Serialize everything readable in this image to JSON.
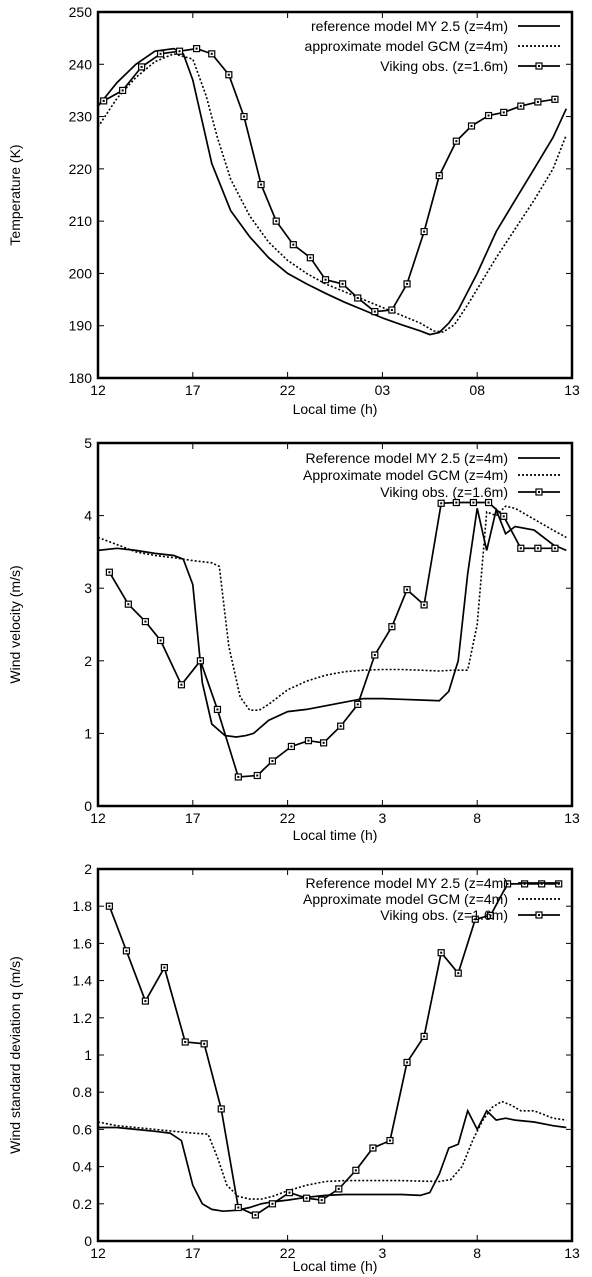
{
  "chart_data": [
    {
      "type": "line",
      "xlabel": "Local time (h)",
      "ylabel": "Temperature (K)",
      "xlim": [
        0,
        25
      ],
      "ylim": [
        180,
        250
      ],
      "xticks": [
        {
          "x": 0,
          "label": "12"
        },
        {
          "x": 5,
          "label": "17"
        },
        {
          "x": 10,
          "label": "22"
        },
        {
          "x": 15,
          "label": "03"
        },
        {
          "x": 20,
          "label": "08"
        },
        {
          "x": 25,
          "label": "13"
        }
      ],
      "yticks": [
        180,
        190,
        200,
        210,
        220,
        230,
        240,
        250
      ],
      "grid": false,
      "legend_position": "top-right",
      "series": [
        {
          "name": "reference model MY 2.5 (z=4m)",
          "style": "solid",
          "markers": false,
          "x": [
            0,
            1,
            2,
            3,
            4,
            4.5,
            5,
            5.5,
            6,
            7,
            8,
            9,
            10,
            11,
            12,
            13,
            14,
            15,
            16,
            17,
            17.5,
            18,
            18.5,
            19,
            20,
            21,
            22,
            23,
            24,
            24.7
          ],
          "y": [
            232,
            236.5,
            240,
            242.5,
            243,
            242,
            237,
            229,
            221,
            212,
            207,
            203,
            200,
            198,
            196.2,
            194.5,
            193,
            191.5,
            190.2,
            189,
            188.3,
            188.7,
            190.5,
            193,
            200,
            208,
            214,
            220,
            226,
            231.5
          ]
        },
        {
          "name": "approximate model GCM (z=4m)",
          "style": "dotted",
          "markers": false,
          "x": [
            0,
            1,
            2,
            3,
            4,
            5,
            5.7,
            6.3,
            7,
            8,
            9,
            10,
            11,
            12,
            13,
            14,
            15,
            16,
            17,
            17.7,
            18.2,
            18.8,
            19.5,
            20,
            21,
            22,
            23,
            24,
            24.7
          ],
          "y": [
            228,
            233.5,
            237.5,
            240.5,
            242,
            241,
            234,
            226,
            218,
            211,
            206,
            202.5,
            200,
            198,
            196.5,
            195,
            193.5,
            192,
            190.5,
            189,
            188.8,
            190.2,
            194,
            197,
            203,
            208.5,
            214,
            220,
            226.5
          ]
        },
        {
          "name": "Viking obs. (z=1.6m)",
          "style": "solid",
          "markers": true,
          "x": [
            0.3,
            1.3,
            2.3,
            3.3,
            4.3,
            5.2,
            6.0,
            6.9,
            7.7,
            8.6,
            9.4,
            10.3,
            11.2,
            12.0,
            12.9,
            13.7,
            14.6,
            15.5,
            16.3,
            17.2,
            18.0,
            18.9,
            19.7,
            20.6,
            21.4,
            22.3,
            23.2,
            24.1
          ],
          "y": [
            233,
            235,
            239.5,
            242,
            242.5,
            243,
            242,
            238,
            230,
            217,
            210,
            205.5,
            203,
            198.8,
            198,
            195.3,
            192.7,
            193,
            198,
            208,
            218.7,
            225.3,
            228.2,
            230.2,
            230.8,
            232,
            232.8,
            233.3
          ]
        }
      ],
      "legend_entries": [
        "reference model MY 2.5 (z=4m)",
        "approximate model GCM (z=4m)",
        "Viking obs. (z=1.6m)"
      ]
    },
    {
      "type": "line",
      "xlabel": "Local time (h)",
      "ylabel": "Wind velocity (m/s)",
      "xlim": [
        0,
        25
      ],
      "ylim": [
        0,
        5
      ],
      "xticks": [
        {
          "x": 0,
          "label": "12"
        },
        {
          "x": 5,
          "label": "17"
        },
        {
          "x": 10,
          "label": "22"
        },
        {
          "x": 15,
          "label": "3"
        },
        {
          "x": 20,
          "label": "8"
        },
        {
          "x": 25,
          "label": "13"
        }
      ],
      "yticks": [
        0,
        1,
        2,
        3,
        4,
        5
      ],
      "grid": false,
      "legend_position": "top-right",
      "series": [
        {
          "name": "Reference model MY 2.5 (z=4m)",
          "style": "solid",
          "markers": false,
          "x": [
            0,
            1,
            2,
            3,
            4,
            4.5,
            5,
            5.5,
            6,
            6.7,
            7.3,
            7.8,
            8.2,
            9,
            10,
            11,
            12,
            13,
            14,
            15,
            16,
            17,
            18,
            18.5,
            19,
            19.5,
            20,
            20.5,
            21,
            21.5,
            22,
            23,
            24,
            24.7
          ],
          "y": [
            3.52,
            3.55,
            3.52,
            3.48,
            3.45,
            3.4,
            3.05,
            1.7,
            1.13,
            0.97,
            0.95,
            0.97,
            1.0,
            1.18,
            1.3,
            1.33,
            1.38,
            1.43,
            1.48,
            1.48,
            1.47,
            1.46,
            1.45,
            1.58,
            2.0,
            3.2,
            4.1,
            3.52,
            4.08,
            3.75,
            3.85,
            3.8,
            3.6,
            3.52
          ]
        },
        {
          "name": "Approximate model GCM (z=4m)",
          "style": "dotted",
          "markers": false,
          "x": [
            0,
            1,
            2,
            3,
            4,
            5,
            6,
            6.4,
            6.9,
            7.5,
            8,
            8.5,
            9,
            9.5,
            10,
            11,
            12,
            13,
            14,
            15,
            16,
            17,
            18,
            18.7,
            19.5,
            20,
            20.5,
            21,
            21.5,
            22,
            23,
            24,
            24.7
          ],
          "y": [
            3.7,
            3.6,
            3.5,
            3.45,
            3.42,
            3.38,
            3.35,
            3.3,
            2.2,
            1.5,
            1.32,
            1.32,
            1.4,
            1.5,
            1.6,
            1.72,
            1.8,
            1.85,
            1.87,
            1.88,
            1.88,
            1.87,
            1.86,
            1.87,
            1.87,
            2.5,
            4.05,
            4.0,
            4.13,
            4.1,
            3.95,
            3.8,
            3.7
          ]
        },
        {
          "name": "Viking obs. (z=1.6m)",
          "style": "solid",
          "markers": true,
          "x": [
            0.6,
            1.6,
            2.5,
            3.3,
            4.4,
            5.4,
            6.3,
            7.4,
            8.4,
            9.2,
            10.2,
            11.1,
            11.9,
            12.8,
            13.7,
            14.6,
            15.5,
            16.3,
            17.2,
            18.1,
            18.9,
            19.8,
            20.6,
            21.4,
            22.3,
            23.2,
            24.1
          ],
          "y": [
            3.22,
            2.78,
            2.54,
            2.28,
            1.67,
            2.0,
            1.33,
            0.4,
            0.42,
            0.62,
            0.82,
            0.9,
            0.87,
            1.1,
            1.4,
            2.08,
            2.47,
            2.98,
            2.77,
            4.17,
            4.18,
            4.18,
            4.18,
            3.99,
            3.55,
            3.55,
            3.55
          ]
        }
      ],
      "legend_entries": [
        "Reference model MY 2.5 (z=4m)",
        "Approximate model GCM (z=4m)",
        "Viking obs. (z=1.6m)"
      ]
    },
    {
      "type": "line",
      "xlabel": "Local time (h)",
      "ylabel": "Wind standard deviation q (m/s)",
      "xlim": [
        0,
        25
      ],
      "ylim": [
        0,
        2
      ],
      "xticks": [
        {
          "x": 0,
          "label": "12"
        },
        {
          "x": 5,
          "label": "17"
        },
        {
          "x": 10,
          "label": "22"
        },
        {
          "x": 15,
          "label": "3"
        },
        {
          "x": 20,
          "label": "8"
        },
        {
          "x": 25,
          "label": "13"
        }
      ],
      "yticks": [
        "0",
        "0.2",
        "0.4",
        "0.6",
        "0.8",
        "1",
        "1.2",
        "1.4",
        "1.6",
        "1.8",
        "2"
      ],
      "grid": false,
      "legend_position": "top-right",
      "series": [
        {
          "name": "Reference model MY 2.5 (z=4m)",
          "style": "solid",
          "markers": false,
          "x": [
            0,
            1,
            2,
            3,
            3.8,
            4.4,
            5,
            5.5,
            6,
            6.6,
            7.3,
            8,
            8.6,
            9.2,
            10,
            11,
            12,
            13,
            14,
            15,
            16,
            17,
            17.5,
            18,
            18.5,
            19,
            19.5,
            20,
            20.5,
            21,
            21.5,
            22,
            23,
            24,
            24.7
          ],
          "y": [
            0.61,
            0.61,
            0.6,
            0.59,
            0.58,
            0.54,
            0.3,
            0.2,
            0.17,
            0.16,
            0.165,
            0.18,
            0.2,
            0.21,
            0.22,
            0.235,
            0.245,
            0.25,
            0.25,
            0.25,
            0.25,
            0.245,
            0.26,
            0.36,
            0.5,
            0.52,
            0.7,
            0.6,
            0.7,
            0.65,
            0.66,
            0.65,
            0.64,
            0.62,
            0.61
          ]
        },
        {
          "name": "Approximate model GCM (z=4m)",
          "style": "dotted",
          "markers": false,
          "x": [
            0,
            1,
            2,
            3,
            4,
            5,
            5.8,
            6.3,
            6.8,
            7.4,
            8,
            8.6,
            9.2,
            10,
            11,
            12,
            13,
            14,
            15,
            16,
            17,
            18,
            18.6,
            19.2,
            19.8,
            20.3,
            20.8,
            21.3,
            21.8,
            22.3,
            23,
            24,
            24.7
          ],
          "y": [
            0.64,
            0.62,
            0.61,
            0.6,
            0.59,
            0.58,
            0.575,
            0.45,
            0.3,
            0.24,
            0.225,
            0.225,
            0.24,
            0.27,
            0.3,
            0.32,
            0.325,
            0.325,
            0.325,
            0.325,
            0.322,
            0.32,
            0.33,
            0.4,
            0.55,
            0.65,
            0.72,
            0.75,
            0.73,
            0.7,
            0.7,
            0.66,
            0.65
          ]
        },
        {
          "name": "Viking obs. (z=1.6m)",
          "style": "solid",
          "markers": true,
          "x": [
            0.6,
            1.5,
            2.5,
            3.5,
            4.6,
            5.6,
            6.5,
            7.4,
            8.3,
            9.2,
            10.1,
            11.0,
            11.8,
            12.7,
            13.6,
            14.5,
            15.4,
            16.3,
            17.2,
            18.1,
            19.0,
            19.9,
            20.7,
            21.6,
            22.5,
            23.4,
            24.3
          ],
          "y": [
            1.8,
            1.56,
            1.29,
            1.47,
            1.07,
            1.06,
            0.71,
            0.18,
            0.14,
            0.2,
            0.26,
            0.23,
            0.22,
            0.28,
            0.38,
            0.5,
            0.54,
            0.96,
            1.1,
            1.55,
            1.44,
            1.73,
            1.75,
            1.92,
            1.92,
            1.92,
            1.92
          ]
        }
      ],
      "legend_entries": [
        "Reference model MY 2.5 (z=4m)",
        "Approximate model GCM (z=4m)",
        "Viking obs. (z=1.6m)"
      ]
    }
  ],
  "colors": {
    "line": "#000000",
    "background": "#ffffff"
  }
}
